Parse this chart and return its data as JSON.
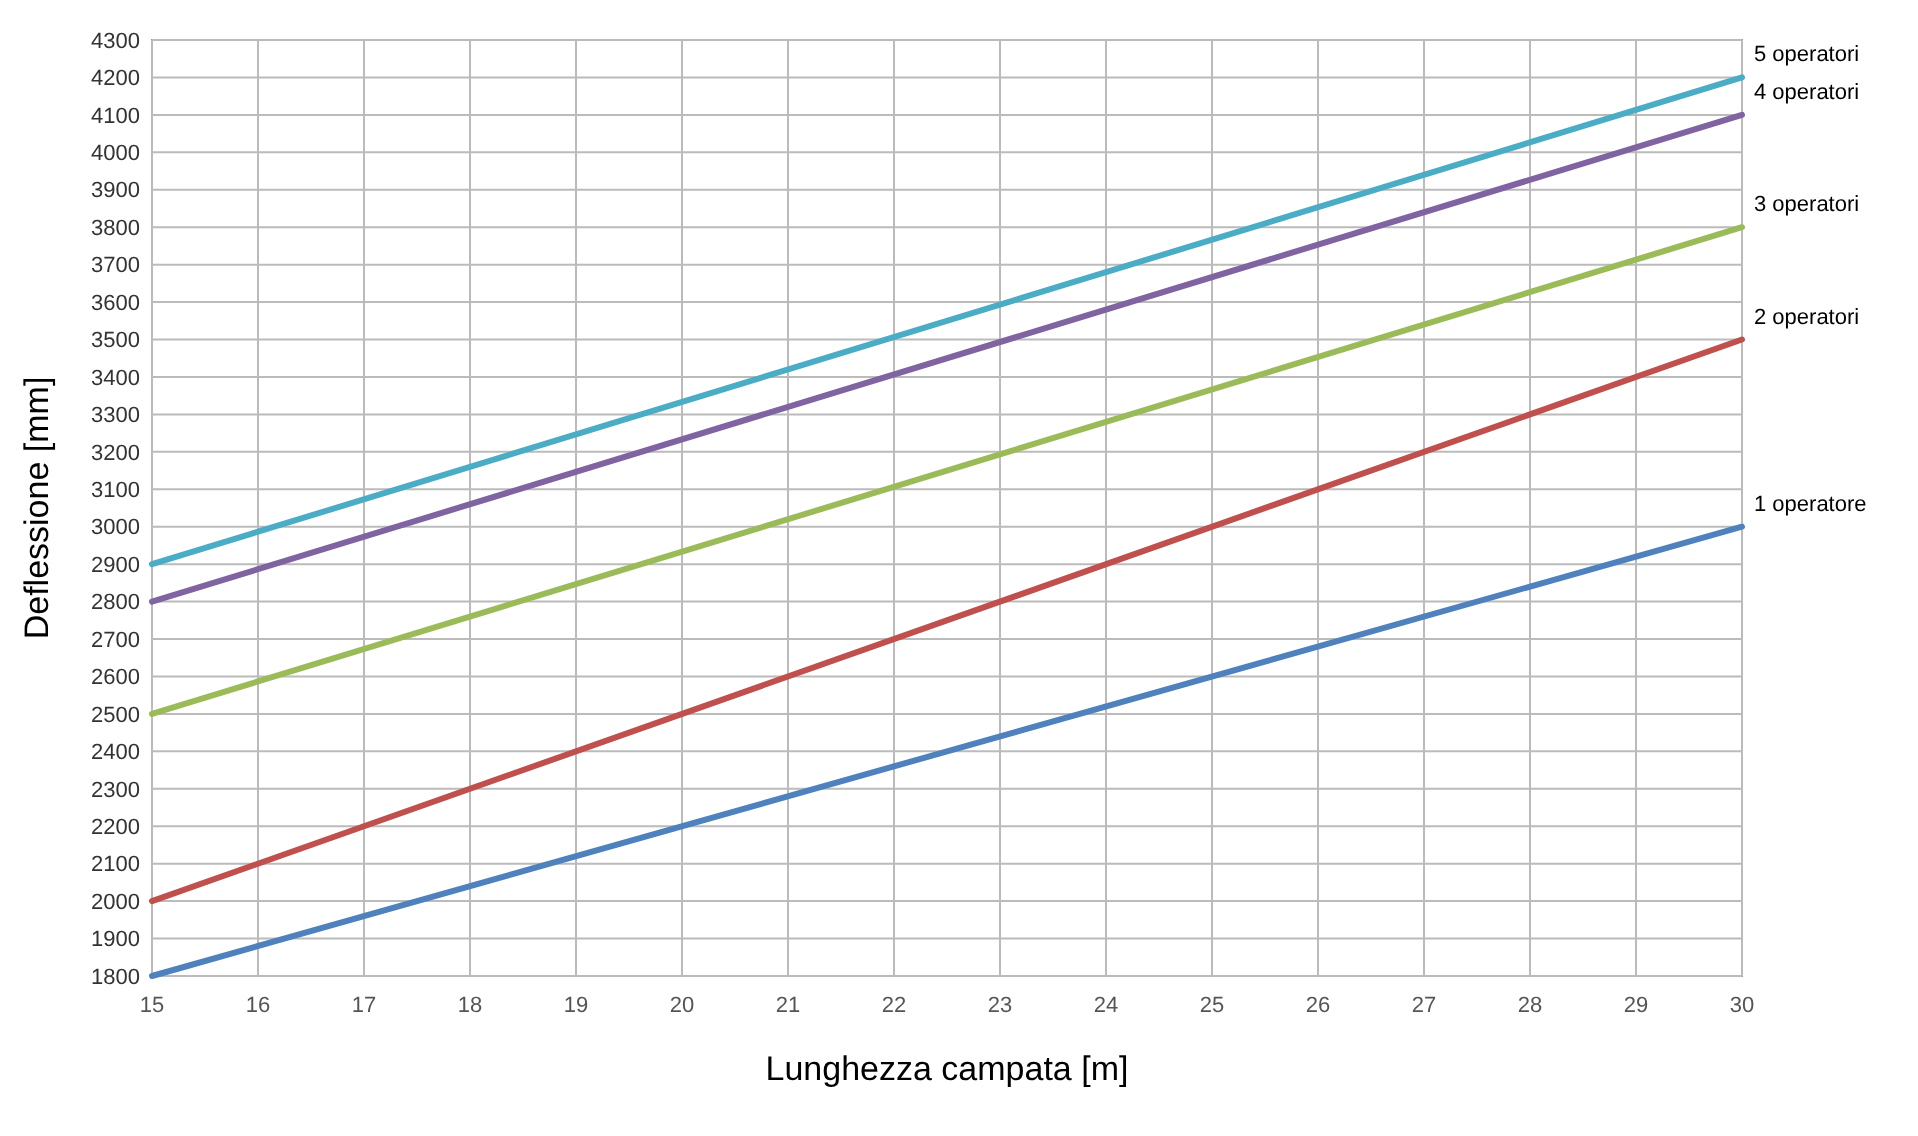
{
  "chart_data": {
    "type": "line",
    "xlabel": "Lunghezza campata [m]",
    "ylabel": "Deflessione [mm]",
    "x": [
      15,
      30
    ],
    "series": [
      {
        "name": "1 operatore",
        "color": "#4f81bd",
        "values": [
          1800,
          3000
        ]
      },
      {
        "name": "2 operatori",
        "color": "#c0504d",
        "values": [
          2000,
          3500
        ]
      },
      {
        "name": "3 operatori",
        "color": "#9bbb59",
        "values": [
          2500,
          3800
        ]
      },
      {
        "name": "4 operatori",
        "color": "#8064a2",
        "values": [
          2800,
          4100
        ]
      },
      {
        "name": "5 operatori",
        "color": "#4bacc6",
        "values": [
          2900,
          4200
        ]
      }
    ],
    "xlim": [
      15,
      30
    ],
    "xticks": [
      15,
      16,
      17,
      18,
      19,
      20,
      21,
      22,
      23,
      24,
      25,
      26,
      27,
      28,
      29,
      30
    ],
    "ylim": [
      1800,
      4300
    ],
    "yticks": [
      1800,
      1900,
      2000,
      2100,
      2200,
      2300,
      2400,
      2500,
      2600,
      2700,
      2800,
      2900,
      3000,
      3100,
      3200,
      3300,
      3400,
      3500,
      3600,
      3700,
      3800,
      3900,
      4000,
      4100,
      4200,
      4300
    ],
    "grid": true,
    "marker": "none",
    "line_style": "solid"
  }
}
